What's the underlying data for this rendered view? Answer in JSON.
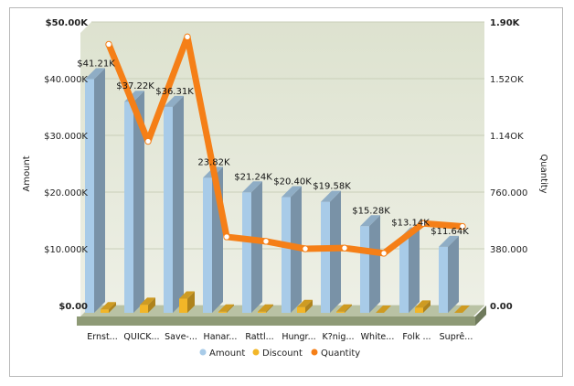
{
  "chart_data": {
    "type": "bar",
    "categories": [
      "Ernst...",
      "QUICK...",
      "Save-...",
      "Hanar...",
      "Rattl...",
      "Hungr...",
      "K?nig...",
      "White...",
      "Folk ...",
      "Suprê..."
    ],
    "series": [
      {
        "name": "Amount",
        "axis": "left",
        "values": [
          41.21,
          37.22,
          36.31,
          23.82,
          21.24,
          20.4,
          19.58,
          15.28,
          13.14,
          11.64
        ],
        "color": "#a8cbe8"
      },
      {
        "name": "Discount",
        "axis": "left",
        "values": [
          0.6,
          1.4,
          2.5,
          0.2,
          0.2,
          1.0,
          0.2,
          0.0,
          0.9,
          0.0
        ],
        "color": "#f2b628"
      },
      {
        "name": "Quantity",
        "axis": "right",
        "type": "line",
        "values": [
          1750,
          1100,
          1800,
          460,
          430,
          380,
          385,
          350,
          550,
          530
        ],
        "color": "#f57f17"
      }
    ],
    "data_labels": [
      "$41.21K",
      "$37.22K",
      "$36.31K",
      "23.82K",
      "$21.24K",
      "$20.40K",
      "$19.58K",
      "$15.28K",
      "$13.14K",
      "$11.64K"
    ],
    "left_axis": {
      "label": "Amount",
      "ylim": [
        0,
        50
      ],
      "ticks": [
        "$0.00",
        "$10.000K",
        "$20.000K",
        "$30.000K",
        "$40.000K",
        "$50.00K"
      ]
    },
    "right_axis": {
      "label": "Quantity",
      "ylim": [
        0,
        1900
      ],
      "ticks": [
        "0.00",
        "380.000",
        "760.000",
        "1.14OK",
        "1.52OK",
        "1.90K"
      ]
    },
    "grid": true,
    "legend_position": "bottom",
    "legend": [
      "Amount",
      "Discount",
      "Quantity"
    ]
  }
}
